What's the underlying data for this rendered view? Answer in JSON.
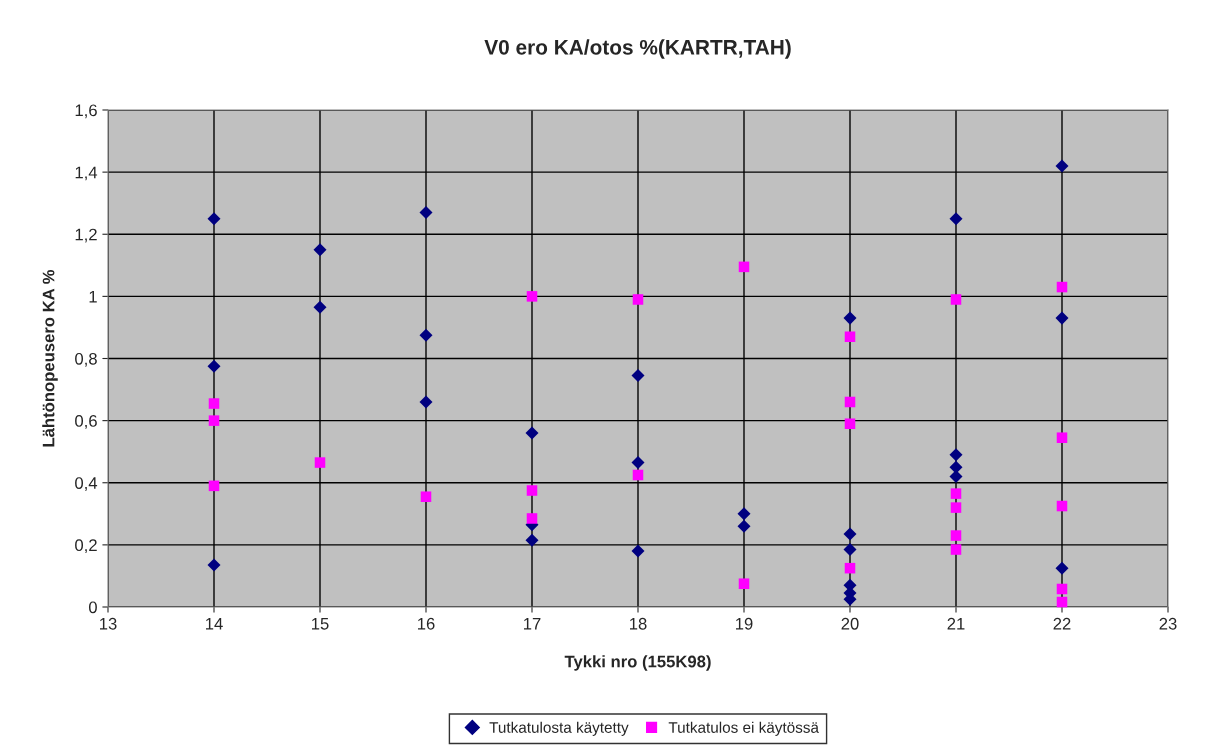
{
  "chart_data": {
    "type": "scatter",
    "title": "V0 ero KA/otos %(KARTR,TAH)",
    "xlabel": "Tykki nro (155K98)",
    "ylabel": "Lähtönopeusero KA %",
    "xlim": [
      13,
      23
    ],
    "xticks": [
      13,
      14,
      15,
      16,
      17,
      18,
      19,
      20,
      21,
      22,
      23
    ],
    "ylim": [
      0,
      1.6
    ],
    "yticks": [
      {
        "value": 0,
        "label": "0"
      },
      {
        "value": 0.2,
        "label": "0,2"
      },
      {
        "value": 0.4,
        "label": "0,4"
      },
      {
        "value": 0.6,
        "label": "0,6"
      },
      {
        "value": 0.8,
        "label": "0,8"
      },
      {
        "value": 1,
        "label": "1"
      },
      {
        "value": 1.2,
        "label": "1,2"
      },
      {
        "value": 1.4,
        "label": "1,4"
      },
      {
        "value": 1.6,
        "label": "1,6"
      }
    ],
    "grid": true,
    "legend": "bottom",
    "series": [
      {
        "name": "Tutkatulosta käytetty",
        "color": "#000080",
        "marker": "diamond",
        "x": [
          14,
          14,
          14,
          15,
          15,
          16,
          16,
          16,
          17,
          17,
          17,
          18,
          18,
          18,
          19,
          19,
          20,
          20,
          20,
          20,
          20,
          20,
          21,
          21,
          21,
          21,
          22,
          22,
          22
        ],
        "values": [
          1.25,
          0.775,
          0.135,
          1.15,
          0.965,
          1.27,
          0.875,
          0.66,
          0.56,
          0.265,
          0.215,
          0.745,
          0.465,
          0.18,
          0.3,
          0.26,
          0.93,
          0.235,
          0.185,
          0.07,
          0.045,
          0.025,
          1.25,
          0.49,
          0.45,
          0.42,
          1.42,
          0.93,
          0.125
        ]
      },
      {
        "name": "Tutkatulos ei käytössä",
        "color": "#ff00ff",
        "marker": "square",
        "x": [
          14,
          14,
          14,
          15,
          16,
          17,
          17,
          17,
          18,
          18,
          19,
          19,
          20,
          20,
          20,
          20,
          21,
          21,
          21,
          21,
          21,
          22,
          22,
          22,
          22,
          22
        ],
        "values": [
          0.655,
          0.6,
          0.39,
          0.465,
          0.355,
          1.0,
          0.375,
          0.285,
          0.99,
          0.425,
          1.095,
          0.075,
          0.87,
          0.66,
          0.59,
          0.125,
          0.99,
          0.365,
          0.32,
          0.23,
          0.185,
          1.03,
          0.545,
          0.325,
          0.058,
          0.016
        ]
      }
    ]
  }
}
